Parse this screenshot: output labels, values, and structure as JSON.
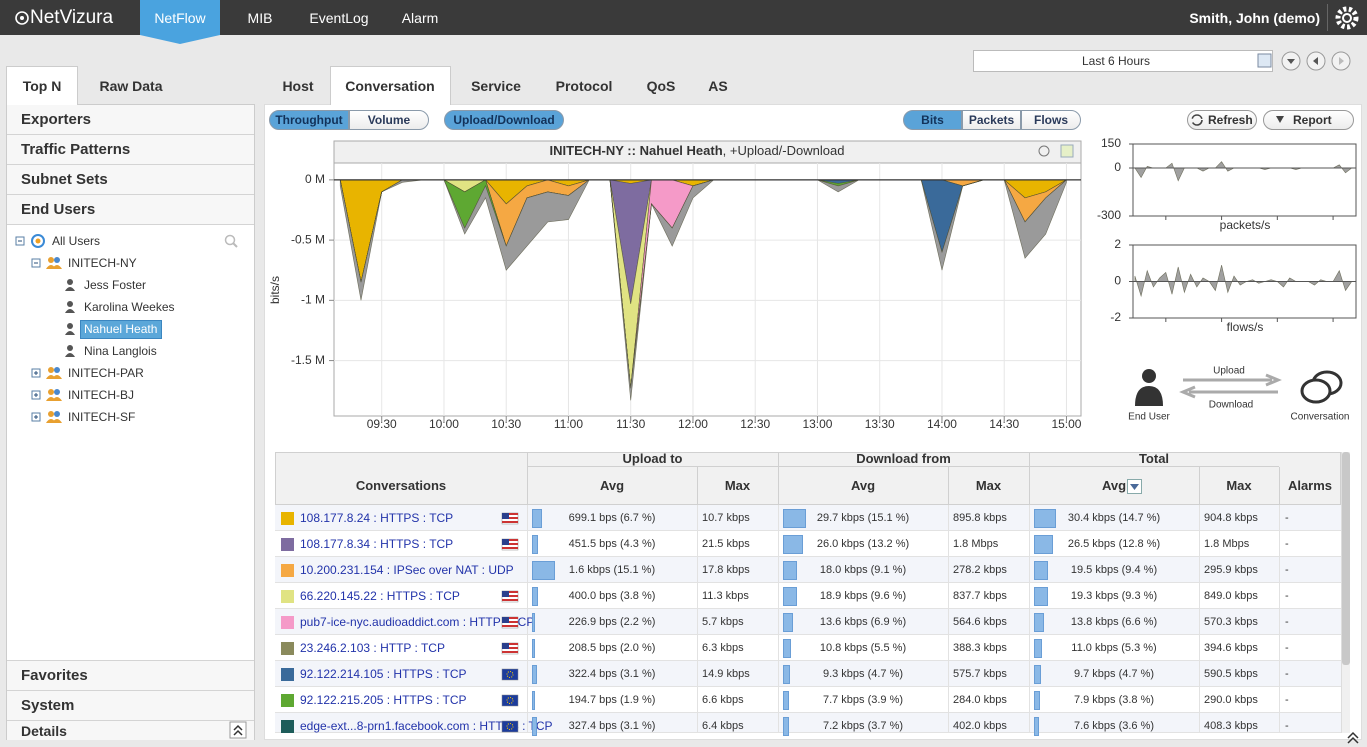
{
  "header": {
    "logo": "NetVizura",
    "nav": [
      "NetFlow",
      "MIB",
      "EventLog",
      "Alarm"
    ],
    "active": 0,
    "user": "Smith, John (demo)"
  },
  "time_range": "Last 6 Hours",
  "sidebar": {
    "tabs": [
      "Top N",
      "Raw Data"
    ],
    "sections": [
      "Exporters",
      "Traffic Patterns",
      "Subnet Sets",
      "End Users"
    ],
    "tree": [
      {
        "label": "All Users",
        "level": 0,
        "kind": "root"
      },
      {
        "label": "INITECH-NY",
        "level": 1,
        "kind": "group"
      },
      {
        "label": "Jess Foster",
        "level": 2,
        "kind": "user"
      },
      {
        "label": "Karolina Weekes",
        "level": 2,
        "kind": "user"
      },
      {
        "label": "Nahuel Heath",
        "level": 2,
        "kind": "user"
      },
      {
        "label": "Nina Langlois",
        "level": 2,
        "kind": "user"
      },
      {
        "label": "INITECH-PAR",
        "level": 1,
        "kind": "group"
      },
      {
        "label": "INITECH-BJ",
        "level": 1,
        "kind": "group"
      },
      {
        "label": "INITECH-SF",
        "level": 1,
        "kind": "group"
      }
    ],
    "selected": 4,
    "bottom": [
      "Favorites",
      "System",
      "Details"
    ]
  },
  "tabs": [
    "Host",
    "Conversation",
    "Service",
    "Protocol",
    "QoS",
    "AS"
  ],
  "active_tab": 1,
  "toolbar": {
    "mode": [
      "Throughput",
      "Volume"
    ],
    "direction": "Upload/Download",
    "units": [
      "Bits",
      "Packets",
      "Flows"
    ],
    "refresh": "Refresh",
    "report": "Report"
  },
  "chart_data": [
    {
      "type": "area",
      "title": "INITECH-NY :: Nahuel Heath",
      "subtitle": ", +Upload/-Download",
      "y_label": "bits/s",
      "stacked": true,
      "grid": true,
      "x": [
        "09:10",
        "09:20",
        "09:30",
        "09:40",
        "09:50",
        "10:00",
        "10:10",
        "10:20",
        "10:30",
        "10:40",
        "10:50",
        "11:00",
        "11:10",
        "11:20",
        "11:30",
        "11:40",
        "11:50",
        "12:00",
        "12:10",
        "12:20",
        "12:30",
        "12:40",
        "12:50",
        "13:00",
        "13:10",
        "13:20",
        "13:30",
        "13:40",
        "13:50",
        "14:00",
        "14:10",
        "14:20",
        "14:30",
        "14:40",
        "14:50",
        "15:00"
      ],
      "xlim": [
        "09:07",
        "15:07"
      ],
      "xticks": [
        "09:30",
        "10:00",
        "10:30",
        "11:00",
        "11:30",
        "12:00",
        "12:30",
        "13:00",
        "13:30",
        "14:00",
        "14:30",
        "15:00"
      ],
      "ylim": [
        -1.96,
        0.14
      ],
      "yticks": [
        {
          "value": 0,
          "label": "0 M"
        },
        {
          "value": -0.5,
          "label": "-0.5 M"
        },
        {
          "value": -1,
          "label": "-1 M"
        },
        {
          "value": -1.5,
          "label": "-1.5 M"
        }
      ],
      "series": [
        {
          "color": "#e8b400",
          "values": [
            0,
            -0.85,
            -0.1,
            0,
            0,
            0,
            0,
            0,
            -0.2,
            -0.05,
            0,
            -0.05,
            0,
            0,
            -0.03,
            0,
            0,
            -0.05,
            0,
            0,
            0,
            0,
            0,
            0,
            0,
            0,
            0,
            0,
            0,
            0,
            0,
            0,
            0,
            -0.15,
            -0.1,
            0
          ]
        },
        {
          "color": "#7e6ca0",
          "values": [
            0,
            0,
            0,
            0,
            0,
            0,
            0,
            0,
            0,
            0,
            0,
            0,
            0,
            0,
            -1.0,
            0,
            0,
            0,
            0,
            0,
            0,
            0,
            0,
            0,
            0,
            0,
            0,
            0,
            0,
            0,
            0,
            0,
            0,
            0,
            0,
            0
          ]
        },
        {
          "color": "#e0e383",
          "values": [
            0,
            0,
            0,
            0,
            0,
            0,
            -0.1,
            0,
            0,
            0,
            0,
            0,
            0,
            0,
            -0.7,
            0,
            0,
            0,
            0,
            0,
            0,
            0,
            0,
            0,
            0,
            0,
            0,
            0,
            0,
            0,
            0,
            0,
            0,
            0,
            0,
            0
          ]
        },
        {
          "color": "#f5a843",
          "values": [
            0,
            0,
            0,
            0,
            0,
            0,
            0,
            0,
            -0.35,
            -0.1,
            -0.1,
            -0.08,
            0,
            0,
            0,
            0,
            0,
            0,
            0,
            0,
            0,
            0,
            0,
            0,
            0,
            0,
            0,
            0,
            0,
            0,
            -0.05,
            0,
            0,
            -0.2,
            -0.05,
            0
          ]
        },
        {
          "color": "#f59ac8",
          "values": [
            0,
            0,
            0,
            0,
            0,
            0,
            0,
            0,
            0,
            0,
            0,
            0,
            0,
            0,
            0,
            -0.2,
            -0.4,
            0,
            0,
            0,
            0,
            0,
            0,
            0,
            0,
            0,
            0,
            0,
            0,
            0,
            0,
            0,
            0,
            0,
            0,
            0
          ]
        },
        {
          "color": "#3a6a9a",
          "values": [
            0,
            0,
            0,
            0,
            0,
            0,
            0,
            0,
            0,
            0,
            0,
            0,
            0,
            0,
            0,
            0,
            0,
            0,
            0,
            0,
            0,
            0,
            0,
            0,
            -0.03,
            0,
            0,
            0,
            0,
            -0.6,
            0,
            0,
            0,
            0,
            0,
            0
          ]
        },
        {
          "color": "#5ea832",
          "values": [
            0,
            0,
            0,
            0,
            0,
            0,
            -0.3,
            -0.05,
            0,
            0,
            0,
            0,
            0,
            0,
            0,
            0,
            0,
            0,
            0,
            0,
            0,
            0,
            0,
            0,
            -0.02,
            0,
            0,
            0,
            0,
            0,
            0,
            0,
            0,
            0,
            0,
            0
          ]
        },
        {
          "color": "#9a9a9a",
          "values": [
            -0.05,
            -0.15,
            0,
            -0.02,
            0,
            0,
            -0.05,
            -0.1,
            -0.2,
            -0.4,
            -0.25,
            -0.2,
            0,
            0,
            -0.1,
            0,
            -0.15,
            -0.1,
            0,
            0,
            0,
            0,
            0,
            0,
            -0.05,
            0,
            0,
            0,
            0,
            -0.15,
            0,
            0,
            0,
            -0.3,
            -0.3,
            -0.02
          ]
        }
      ]
    },
    {
      "type": "area",
      "x_label": "packets/s",
      "ylim": [
        -300,
        150
      ],
      "yticks": [
        150,
        0,
        -300
      ],
      "series": [
        {
          "color": "#a0a0a0",
          "values": [
            0,
            -60,
            10,
            0,
            0,
            0,
            30,
            -80,
            0,
            0,
            0,
            -20,
            0,
            0,
            40,
            -20,
            0,
            0,
            0,
            0,
            0,
            -10,
            0,
            0,
            0,
            0,
            -10,
            0,
            0,
            0,
            0,
            0,
            0,
            20,
            -30,
            0
          ]
        }
      ]
    },
    {
      "type": "area",
      "x_label": "flows/s",
      "ylim": [
        -2,
        2
      ],
      "yticks": [
        2,
        0,
        -2
      ],
      "series": [
        {
          "color": "#a0a0a0",
          "values": [
            0.3,
            -0.8,
            0.6,
            -0.3,
            0.2,
            0.5,
            -0.7,
            0.8,
            -0.6,
            0.4,
            -0.3,
            0.2,
            0,
            -0.5,
            0.9,
            -0.6,
            0.3,
            -0.2,
            0,
            0.1,
            -0.1,
            0,
            0.1,
            0,
            -0.3,
            0.2,
            0,
            0,
            0,
            -0.2,
            0.1,
            0,
            0,
            0.6,
            -0.5,
            0
          ]
        }
      ]
    }
  ],
  "diagram": {
    "end_user": "End User",
    "upload": "Upload",
    "download": "Download",
    "conversation": "Conversation"
  },
  "table": {
    "groups": [
      "Upload to",
      "Download from",
      "Total"
    ],
    "columns": [
      "Conversations",
      "Avg",
      "Max",
      "Avg",
      "Max",
      "Avg",
      "Max",
      "Alarms"
    ],
    "rows": [
      {
        "color": "#e8b400",
        "name": "108.177.8.24 : HTTPS : TCP",
        "flag": "us",
        "up_avg": "699.1 bps (6.7 %)",
        "up_pct": 6.7,
        "up_max": "10.7 kbps",
        "down_avg": "29.7 kbps (15.1 %)",
        "down_pct": 15.1,
        "down_max": "895.8 kbps",
        "total_avg": "30.4 kbps (14.7 %)",
        "total_pct": 14.7,
        "total_max": "904.8 kbps",
        "alarms": "-"
      },
      {
        "color": "#7e6ca0",
        "name": "108.177.8.34 : HTTPS : TCP",
        "flag": "us",
        "up_avg": "451.5 bps (4.3 %)",
        "up_pct": 4.3,
        "up_max": "21.5 kbps",
        "down_avg": "26.0 kbps (13.2 %)",
        "down_pct": 13.2,
        "down_max": "1.8 Mbps",
        "total_avg": "26.5 kbps (12.8 %)",
        "total_pct": 12.8,
        "total_max": "1.8 Mbps",
        "alarms": "-"
      },
      {
        "color": "#f5a843",
        "name": "10.200.231.154 : IPSec over NAT : UDP",
        "flag": null,
        "up_avg": "1.6 kbps (15.1 %)",
        "up_pct": 15.1,
        "up_max": "17.8 kbps",
        "down_avg": "18.0 kbps (9.1 %)",
        "down_pct": 9.1,
        "down_max": "278.2 kbps",
        "total_avg": "19.5 kbps (9.4 %)",
        "total_pct": 9.4,
        "total_max": "295.9 kbps",
        "alarms": "-"
      },
      {
        "color": "#e0e383",
        "name": "66.220.145.22 : HTTPS : TCP",
        "flag": "us",
        "up_avg": "400.0 bps (3.8 %)",
        "up_pct": 3.8,
        "up_max": "11.3 kbps",
        "down_avg": "18.9 kbps (9.6 %)",
        "down_pct": 9.6,
        "down_max": "837.7 kbps",
        "total_avg": "19.3 kbps (9.3 %)",
        "total_pct": 9.3,
        "total_max": "849.0 kbps",
        "alarms": "-"
      },
      {
        "color": "#f59ac8",
        "name": "pub7-ice-nyc.audioaddict.com : HTTP : TCP",
        "flag": "us",
        "up_avg": "226.9 bps (2.2 %)",
        "up_pct": 2.2,
        "up_max": "5.7 kbps",
        "down_avg": "13.6 kbps (6.9 %)",
        "down_pct": 6.9,
        "down_max": "564.6 kbps",
        "total_avg": "13.8 kbps (6.6 %)",
        "total_pct": 6.6,
        "total_max": "570.3 kbps",
        "alarms": "-"
      },
      {
        "color": "#8a8a5c",
        "name": "23.246.2.103 : HTTP : TCP",
        "flag": "us",
        "up_avg": "208.5 bps (2.0 %)",
        "up_pct": 2.0,
        "up_max": "6.3 kbps",
        "down_avg": "10.8 kbps (5.5 %)",
        "down_pct": 5.5,
        "down_max": "388.3 kbps",
        "total_avg": "11.0 kbps (5.3 %)",
        "total_pct": 5.3,
        "total_max": "394.6 kbps",
        "alarms": "-"
      },
      {
        "color": "#3a6a9a",
        "name": "92.122.214.105 : HTTPS : TCP",
        "flag": "eu",
        "up_avg": "322.4 bps (3.1 %)",
        "up_pct": 3.1,
        "up_max": "14.9 kbps",
        "down_avg": "9.3 kbps (4.7 %)",
        "down_pct": 4.7,
        "down_max": "575.7 kbps",
        "total_avg": "9.7 kbps (4.7 %)",
        "total_pct": 4.7,
        "total_max": "590.5 kbps",
        "alarms": "-"
      },
      {
        "color": "#5ea832",
        "name": "92.122.215.205 : HTTPS : TCP",
        "flag": "eu",
        "up_avg": "194.7 bps (1.9 %)",
        "up_pct": 1.9,
        "up_max": "6.6 kbps",
        "down_avg": "7.7 kbps (3.9 %)",
        "down_pct": 3.9,
        "down_max": "284.0 kbps",
        "total_avg": "7.9 kbps (3.8 %)",
        "total_pct": 3.8,
        "total_max": "290.0 kbps",
        "alarms": "-"
      },
      {
        "color": "#1d5c5a",
        "name": "edge-ext...8-prn1.facebook.com : HTTPS : TCP",
        "flag": "eu",
        "up_avg": "327.4 bps (3.1 %)",
        "up_pct": 3.1,
        "up_max": "6.4 kbps",
        "down_avg": "7.2 kbps (3.7 %)",
        "down_pct": 3.7,
        "down_max": "402.0 kbps",
        "total_avg": "7.6 kbps (3.6 %)",
        "total_pct": 3.6,
        "total_max": "408.3 kbps",
        "alarms": "-"
      }
    ]
  }
}
